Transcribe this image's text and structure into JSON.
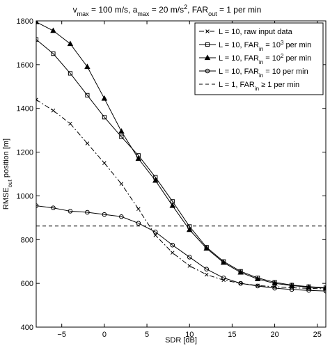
{
  "chart_data": {
    "type": "line",
    "title_parts": [
      [
        "v",
        ""
      ],
      [
        "max",
        "sub"
      ],
      [
        " = 100 m/s, a",
        ""
      ],
      [
        "max",
        "sub"
      ],
      [
        " = 20 m/s",
        ""
      ],
      [
        "2",
        "sup"
      ],
      [
        ", FAR",
        ""
      ],
      [
        "out",
        "sub"
      ],
      [
        " = 1 per min",
        ""
      ]
    ],
    "xlabel": "SDR [dB]",
    "ylabel_parts": [
      [
        "RMSE",
        ""
      ],
      [
        "out",
        "sub"
      ],
      [
        " position [m]",
        ""
      ]
    ],
    "xlim": [
      -8,
      26
    ],
    "ylim": [
      400,
      1800
    ],
    "xticks": [
      -5,
      0,
      5,
      10,
      15,
      20,
      25
    ],
    "yticks": [
      400,
      600,
      800,
      1000,
      1200,
      1400,
      1600,
      1800
    ],
    "grid": false,
    "legend_position": "top-right",
    "series": [
      {
        "label_parts": [
          [
            "L = 10, raw input data",
            ""
          ]
        ],
        "marker": "x",
        "dash": "7,3,2,3",
        "x": [
          -8,
          -6,
          -4,
          -2,
          0,
          2,
          4,
          6,
          8,
          10,
          12,
          14,
          16,
          18,
          20,
          22,
          24,
          26
        ],
        "y": [
          1440,
          1390,
          1330,
          1240,
          1150,
          1055,
          940,
          820,
          740,
          680,
          640,
          615,
          600,
          590,
          585,
          580,
          577,
          575
        ]
      },
      {
        "label_parts": [
          [
            "L = 10, FAR",
            ""
          ],
          [
            "in",
            "sub"
          ],
          [
            " = 10",
            ""
          ],
          [
            "3",
            "sup"
          ],
          [
            " per min",
            ""
          ]
        ],
        "marker": "square",
        "dash": "",
        "x": [
          -8,
          -6,
          -4,
          -2,
          0,
          2,
          4,
          6,
          8,
          10,
          12,
          14,
          16,
          18,
          20,
          22,
          24,
          26
        ],
        "y": [
          1715,
          1650,
          1560,
          1460,
          1360,
          1270,
          1185,
          1085,
          975,
          860,
          765,
          700,
          655,
          625,
          605,
          592,
          585,
          580
        ]
      },
      {
        "label_parts": [
          [
            "L = 10, FAR",
            ""
          ],
          [
            "in",
            "sub"
          ],
          [
            " = 10",
            ""
          ],
          [
            "2",
            "sup"
          ],
          [
            " per min",
            ""
          ]
        ],
        "marker": "triangle",
        "dash": "",
        "x": [
          -8,
          -6,
          -4,
          -2,
          0,
          2,
          4,
          6,
          8,
          10,
          12,
          14,
          16,
          18,
          20,
          22,
          24,
          26
        ],
        "y": [
          1795,
          1755,
          1695,
          1590,
          1445,
          1295,
          1170,
          1070,
          955,
          845,
          760,
          695,
          650,
          620,
          600,
          590,
          582,
          578
        ]
      },
      {
        "label_parts": [
          [
            "L = 10, FAR",
            ""
          ],
          [
            "in",
            "sub"
          ],
          [
            " = 10 per min",
            ""
          ]
        ],
        "marker": "circle",
        "dash": "",
        "x": [
          -8,
          -6,
          -4,
          -2,
          0,
          2,
          4,
          6,
          8,
          10,
          12,
          14,
          16,
          18,
          20,
          22,
          24,
          26
        ],
        "y": [
          955,
          945,
          930,
          925,
          915,
          905,
          875,
          835,
          775,
          720,
          665,
          625,
          600,
          588,
          578,
          572,
          568,
          565
        ]
      },
      {
        "label_parts": [
          [
            "L = 1, FAR",
            ""
          ],
          [
            "in",
            "sub"
          ],
          [
            " ≥ 1 per min",
            ""
          ]
        ],
        "marker": "none",
        "dash": "5,4",
        "x": [
          -8,
          26
        ],
        "y": [
          862,
          862
        ]
      }
    ]
  }
}
